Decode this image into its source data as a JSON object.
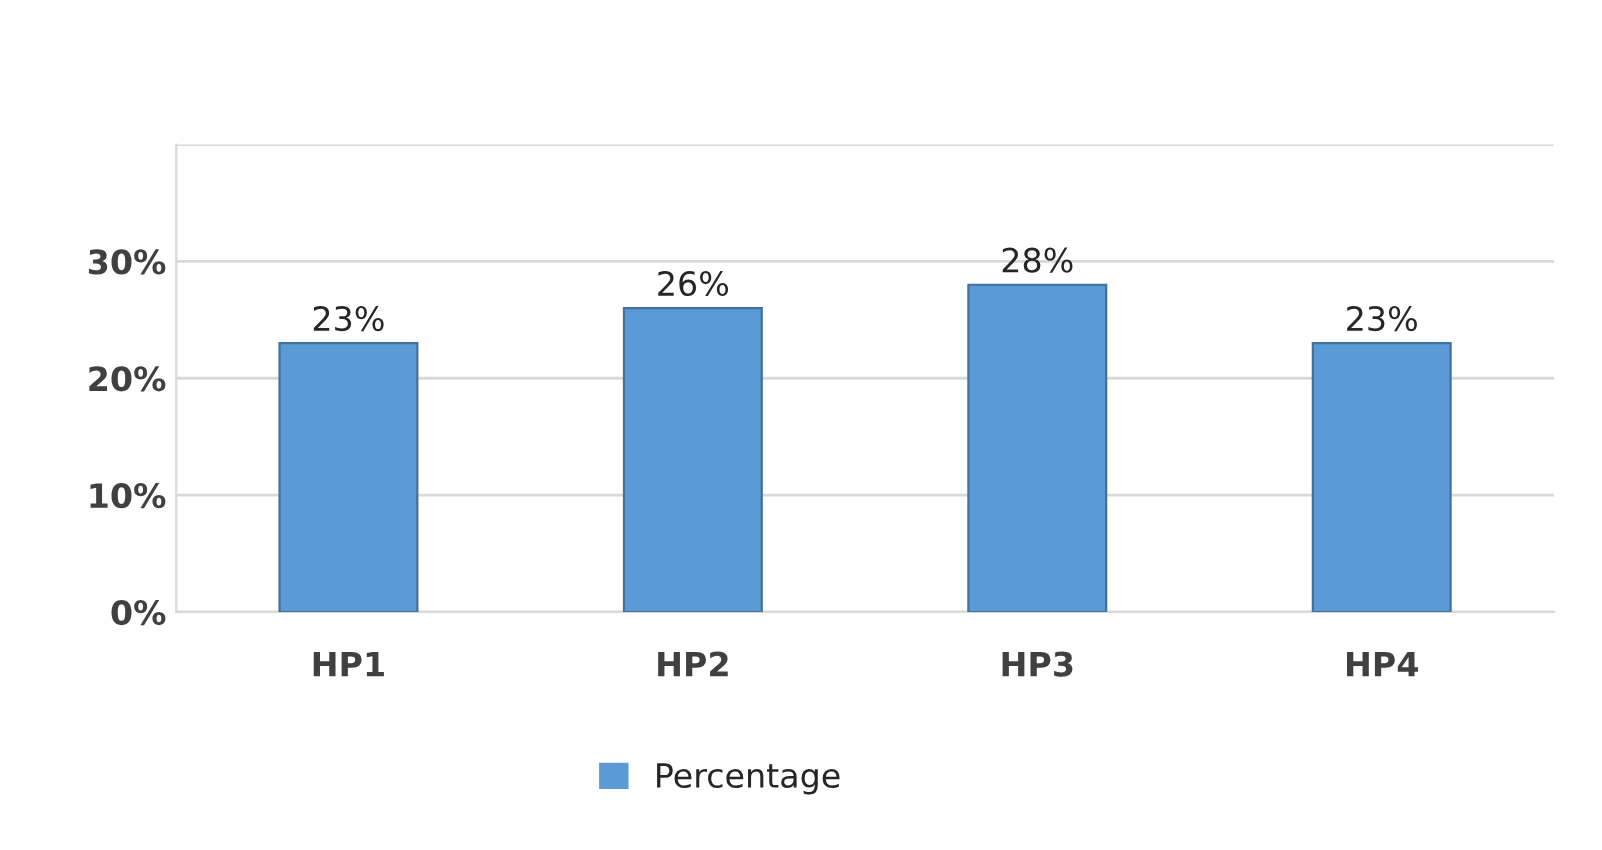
{
  "chart_data": {
    "type": "bar",
    "categories": [
      "HP1",
      "HP2",
      "HP3",
      "HP4"
    ],
    "series": [
      {
        "name": "Percentage",
        "color": "#5b9bd5",
        "values": [
          23,
          26,
          28,
          23
        ],
        "value_labels": [
          "23%",
          "26%",
          "28%",
          "23%"
        ]
      }
    ],
    "ylim": [
      0,
      40
    ],
    "yticks": [
      {
        "value": 0,
        "label": "0%"
      },
      {
        "value": 10,
        "label": "10%"
      },
      {
        "value": 20,
        "label": "20%"
      },
      {
        "value": 30,
        "label": "30%"
      },
      {
        "value": 40,
        "label": null
      }
    ],
    "grid": "y",
    "legend": "bottom"
  }
}
